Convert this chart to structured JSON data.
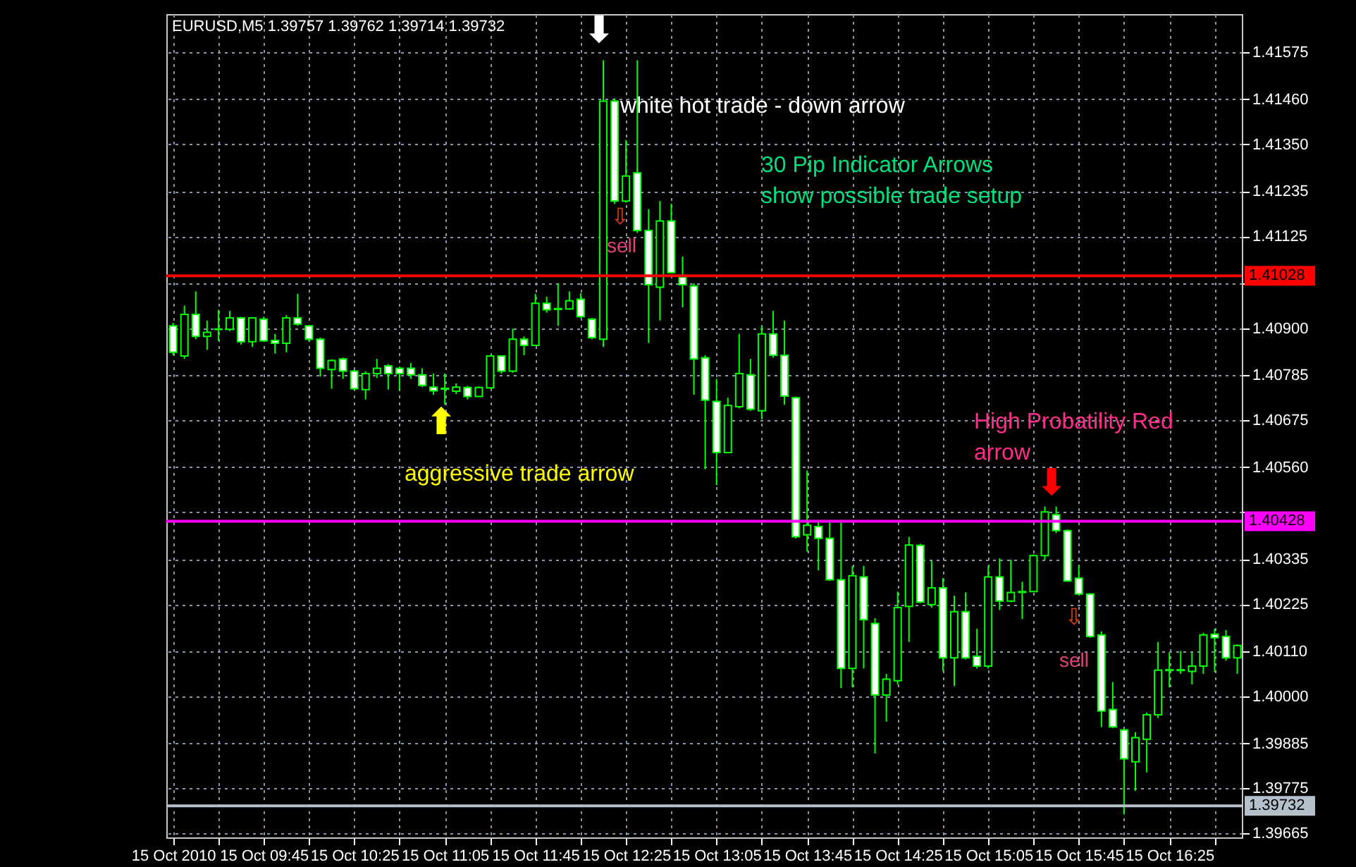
{
  "chart_data": {
    "type": "candlestick",
    "title": "EURUSD,M5  1.39757 1.39762 1.39714 1.39732",
    "x": [
      "2010-10-15T09:05",
      "2010-10-15T09:10",
      "2010-10-15T09:15",
      "2010-10-15T09:20",
      "2010-10-15T09:25",
      "2010-10-15T09:30",
      "2010-10-15T09:35",
      "2010-10-15T09:40",
      "2010-10-15T09:45",
      "2010-10-15T09:50",
      "2010-10-15T09:55",
      "2010-10-15T10:00",
      "2010-10-15T10:05",
      "2010-10-15T10:10",
      "2010-10-15T10:15",
      "2010-10-15T10:20",
      "2010-10-15T10:25",
      "2010-10-15T10:30",
      "2010-10-15T10:35",
      "2010-10-15T10:40",
      "2010-10-15T10:45",
      "2010-10-15T10:50",
      "2010-10-15T10:55",
      "2010-10-15T11:00",
      "2010-10-15T11:05",
      "2010-10-15T11:10",
      "2010-10-15T11:15",
      "2010-10-15T11:20",
      "2010-10-15T11:25",
      "2010-10-15T11:30",
      "2010-10-15T11:35",
      "2010-10-15T11:40",
      "2010-10-15T11:45",
      "2010-10-15T11:50",
      "2010-10-15T11:55",
      "2010-10-15T12:00",
      "2010-10-15T12:05",
      "2010-10-15T12:10",
      "2010-10-15T12:15",
      "2010-10-15T12:20",
      "2010-10-15T12:25",
      "2010-10-15T12:30",
      "2010-10-15T12:35",
      "2010-10-15T12:40",
      "2010-10-15T12:45",
      "2010-10-15T12:50",
      "2010-10-15T12:55",
      "2010-10-15T13:00",
      "2010-10-15T13:05",
      "2010-10-15T13:10",
      "2010-10-15T13:15",
      "2010-10-15T13:20",
      "2010-10-15T13:25",
      "2010-10-15T13:30",
      "2010-10-15T13:35",
      "2010-10-15T13:40",
      "2010-10-15T13:45",
      "2010-10-15T13:50",
      "2010-10-15T13:55",
      "2010-10-15T14:00",
      "2010-10-15T14:05",
      "2010-10-15T14:10",
      "2010-10-15T14:15",
      "2010-10-15T14:20",
      "2010-10-15T14:25",
      "2010-10-15T14:30",
      "2010-10-15T14:35",
      "2010-10-15T14:40",
      "2010-10-15T14:45",
      "2010-10-15T14:50",
      "2010-10-15T14:55",
      "2010-10-15T15:00",
      "2010-10-15T15:05",
      "2010-10-15T15:10",
      "2010-10-15T15:15",
      "2010-10-15T15:20",
      "2010-10-15T15:25",
      "2010-10-15T15:30",
      "2010-10-15T15:35",
      "2010-10-15T15:40",
      "2010-10-15T15:45",
      "2010-10-15T15:50",
      "2010-10-15T15:55",
      "2010-10-15T16:00",
      "2010-10-15T16:05",
      "2010-10-15T16:10",
      "2010-10-15T16:15",
      "2010-10-15T16:20",
      "2010-10-15T16:25",
      "2010-10-15T16:30",
      "2010-10-15T16:35",
      "2010-10-15T16:40",
      "2010-10-15T16:45",
      "2010-10-15T16:50",
      "2010-10-15T16:55"
    ],
    "ohlc": [
      [
        1.40906,
        1.40913,
        1.40834,
        1.40841
      ],
      [
        1.40832,
        1.40955,
        1.40825,
        1.40934
      ],
      [
        1.40934,
        1.4099,
        1.40873,
        1.4088
      ],
      [
        1.4088,
        1.40919,
        1.40847,
        1.4089
      ],
      [
        1.40897,
        1.40945,
        1.40869,
        1.40898
      ],
      [
        1.40897,
        1.40942,
        1.40893,
        1.40925
      ],
      [
        1.40925,
        1.40928,
        1.4086,
        1.40867
      ],
      [
        1.40867,
        1.40927,
        1.40854,
        1.40925
      ],
      [
        1.40922,
        1.40928,
        1.40867,
        1.40869
      ],
      [
        1.4087,
        1.40886,
        1.40838,
        1.40863
      ],
      [
        1.40863,
        1.40932,
        1.40841,
        1.40925
      ],
      [
        1.40925,
        1.40984,
        1.40906,
        1.4091
      ],
      [
        1.40906,
        1.40908,
        1.40867,
        1.40873
      ],
      [
        1.40873,
        1.40877,
        1.40782,
        1.40802
      ],
      [
        1.40799,
        1.40824,
        1.40752,
        1.40821
      ],
      [
        1.40825,
        1.40828,
        1.40776,
        1.40795
      ],
      [
        1.40795,
        1.40798,
        1.40749,
        1.40752
      ],
      [
        1.4075,
        1.40795,
        1.40726,
        1.40789
      ],
      [
        1.40789,
        1.40825,
        1.40778,
        1.40802
      ],
      [
        1.40808,
        1.40812,
        1.4075,
        1.40789
      ],
      [
        1.40802,
        1.40806,
        1.40747,
        1.40789
      ],
      [
        1.40802,
        1.40815,
        1.40776,
        1.40786
      ],
      [
        1.40786,
        1.40802,
        1.40756,
        1.4076
      ],
      [
        1.40756,
        1.40789,
        1.40737,
        1.40747
      ],
      [
        1.40753,
        1.40789,
        1.40713,
        1.40751
      ],
      [
        1.40746,
        1.40765,
        1.40739,
        1.40756
      ],
      [
        1.40755,
        1.40759,
        1.40726,
        1.40733
      ],
      [
        1.40733,
        1.40758,
        1.40733,
        1.40755
      ],
      [
        1.40754,
        1.40834,
        1.40752,
        1.40832
      ],
      [
        1.40832,
        1.40834,
        1.40789,
        1.40795
      ],
      [
        1.40795,
        1.40899,
        1.40791,
        1.40873
      ],
      [
        1.40873,
        1.4088,
        1.40834,
        1.40858
      ],
      [
        1.40858,
        1.40984,
        1.40858,
        1.40961
      ],
      [
        1.40961,
        1.40977,
        1.40938,
        1.40945
      ],
      [
        1.40948,
        1.4101,
        1.40906,
        1.40946
      ],
      [
        1.40947,
        1.4099,
        1.40945,
        1.40967
      ],
      [
        1.40971,
        1.40986,
        1.40925,
        1.40928
      ],
      [
        1.40922,
        1.40925,
        1.40873,
        1.40877
      ],
      [
        1.40873,
        1.41555,
        1.40854,
        1.41455
      ],
      [
        1.41455,
        1.41462,
        1.41204,
        1.41211
      ],
      [
        1.41211,
        1.4136,
        1.41207,
        1.41272
      ],
      [
        1.4128,
        1.41555,
        1.41133,
        1.41139
      ],
      [
        1.41139,
        1.41191,
        1.40864,
        1.41006
      ],
      [
        1.41,
        1.41211,
        1.40919,
        1.41162
      ],
      [
        1.41162,
        1.41204,
        1.41036,
        1.41036
      ],
      [
        1.41025,
        1.41075,
        1.40951,
        1.41006
      ],
      [
        1.41003,
        1.4101,
        1.40737,
        1.40825
      ],
      [
        1.40828,
        1.40834,
        1.40555,
        1.40724
      ],
      [
        1.40721,
        1.40776,
        1.40516,
        1.40596
      ],
      [
        1.40596,
        1.4073,
        1.40594,
        1.40711
      ],
      [
        1.40708,
        1.40886,
        1.40704,
        1.40789
      ],
      [
        1.40786,
        1.40825,
        1.40698,
        1.40702
      ],
      [
        1.40698,
        1.40906,
        1.40678,
        1.40886
      ],
      [
        1.40886,
        1.40942,
        1.40828,
        1.40834
      ],
      [
        1.40834,
        1.40919,
        1.40713,
        1.40734
      ],
      [
        1.4073,
        1.40733,
        1.40386,
        1.4039
      ],
      [
        1.40395,
        1.40552,
        1.40354,
        1.40418
      ],
      [
        1.40415,
        1.40431,
        1.40308,
        1.40386
      ],
      [
        1.40386,
        1.40431,
        1.40282,
        1.40285
      ],
      [
        1.40285,
        1.40431,
        1.4002,
        1.40068
      ],
      [
        1.40068,
        1.40319,
        1.40022,
        1.40295
      ],
      [
        1.40292,
        1.40319,
        1.40068,
        1.40187
      ],
      [
        1.40178,
        1.40191,
        1.3986,
        1.40003
      ],
      [
        1.40003,
        1.40055,
        1.39938,
        1.40042
      ],
      [
        1.40038,
        1.40256,
        1.40029,
        1.40217
      ],
      [
        1.4022,
        1.4039,
        1.40133,
        1.4037
      ],
      [
        1.40369,
        1.40373,
        1.40228,
        1.4023
      ],
      [
        1.40224,
        1.40331,
        1.40217,
        1.40265
      ],
      [
        1.40265,
        1.40289,
        1.40061,
        1.40094
      ],
      [
        1.40094,
        1.40246,
        1.40025,
        1.40207
      ],
      [
        1.40207,
        1.40254,
        1.4009,
        1.40094
      ],
      [
        1.40098,
        1.40165,
        1.40068,
        1.40074
      ],
      [
        1.40074,
        1.40319,
        1.40068,
        1.40292
      ],
      [
        1.40292,
        1.40337,
        1.40211,
        1.40233
      ],
      [
        1.40233,
        1.40334,
        1.4023,
        1.40254
      ],
      [
        1.40254,
        1.4028,
        1.40189,
        1.40256
      ],
      [
        1.40256,
        1.40347,
        1.40256,
        1.40344
      ],
      [
        1.40344,
        1.40464,
        1.40334,
        1.40451
      ],
      [
        1.40444,
        1.40464,
        1.40399,
        1.40405
      ],
      [
        1.40405,
        1.40408,
        1.4028,
        1.40282
      ],
      [
        1.40289,
        1.40319,
        1.4025,
        1.4025
      ],
      [
        1.4025,
        1.40252,
        1.40143,
        1.40146
      ],
      [
        1.4015,
        1.40159,
        1.39925,
        1.39964
      ],
      [
        1.39968,
        1.40035,
        1.39922,
        1.39925
      ],
      [
        1.39918,
        1.39921,
        1.39711,
        1.39847
      ],
      [
        1.3984,
        1.39912,
        1.39769,
        1.39899
      ],
      [
        1.39895,
        1.3996,
        1.39814,
        1.39955
      ],
      [
        1.39955,
        1.40133,
        1.39947,
        1.40064
      ],
      [
        1.40063,
        1.40107,
        1.40022,
        1.40065
      ],
      [
        1.40065,
        1.40111,
        1.40055,
        1.40063
      ],
      [
        1.40061,
        1.40107,
        1.40029,
        1.40074
      ],
      [
        1.40074,
        1.40155,
        1.40055,
        1.4015
      ],
      [
        1.40152,
        1.40165,
        1.40059,
        1.40143
      ],
      [
        1.40146,
        1.40162,
        1.40087,
        1.40094
      ],
      [
        1.40094,
        1.40127,
        1.40055,
        1.40124
      ]
    ],
    "xlim": [
      "2010-10-15T09:02",
      "2010-10-15T16:57"
    ],
    "xticks": [
      {
        "value": "2010-10-15T09:05",
        "label": "15 Oct 2010"
      },
      {
        "value": "2010-10-15T09:25",
        "label": null
      },
      {
        "value": "2010-10-15T09:45",
        "label": "15 Oct 09:45"
      },
      {
        "value": "2010-10-15T10:05",
        "label": null
      },
      {
        "value": "2010-10-15T10:25",
        "label": "15 Oct 10:25"
      },
      {
        "value": "2010-10-15T10:45",
        "label": null
      },
      {
        "value": "2010-10-15T11:05",
        "label": "15 Oct 11:05"
      },
      {
        "value": "2010-10-15T11:25",
        "label": null
      },
      {
        "value": "2010-10-15T11:45",
        "label": "15 Oct 11:45"
      },
      {
        "value": "2010-10-15T12:05",
        "label": null
      },
      {
        "value": "2010-10-15T12:25",
        "label": "15 Oct 12:25"
      },
      {
        "value": "2010-10-15T12:45",
        "label": null
      },
      {
        "value": "2010-10-15T13:05",
        "label": "15 Oct 13:05"
      },
      {
        "value": "2010-10-15T13:25",
        "label": null
      },
      {
        "value": "2010-10-15T13:45",
        "label": "15 Oct 13:45"
      },
      {
        "value": "2010-10-15T14:05",
        "label": null
      },
      {
        "value": "2010-10-15T14:25",
        "label": "15 Oct 14:25"
      },
      {
        "value": "2010-10-15T14:45",
        "label": null
      },
      {
        "value": "2010-10-15T15:05",
        "label": "15 Oct 15:05"
      },
      {
        "value": "2010-10-15T15:25",
        "label": null
      },
      {
        "value": "2010-10-15T15:45",
        "label": "15 Oct 15:45"
      },
      {
        "value": "2010-10-15T16:05",
        "label": null
      },
      {
        "value": "2010-10-15T16:25",
        "label": "15 Oct 16:25"
      },
      {
        "value": "2010-10-15T16:45",
        "label": null
      }
    ],
    "ylim": [
      1.39655,
      1.41668
    ],
    "yticks": [
      1.39665,
      1.39775,
      1.39885,
      {
        "value": 1.4,
        "label": "1.40000"
      },
      {
        "value": 1.4011,
        "label": "1.40110"
      },
      1.40225,
      1.40335,
      {
        "value": 1.4045,
        "label": null
      },
      {
        "value": 1.4056,
        "label": "1.40560"
      },
      1.40675,
      1.40785,
      {
        "value": 1.409,
        "label": "1.40900"
      },
      {
        "value": 1.4101,
        "label": null
      },
      1.41125,
      1.41235,
      {
        "value": 1.4135,
        "label": "1.41350"
      },
      {
        "value": 1.4146,
        "label": "1.41460"
      },
      1.41575
    ],
    "grid": true,
    "ref_lines": [
      {
        "axis": "y",
        "value": 1.41028,
        "label": "1.41028",
        "color": "#ff0000"
      },
      {
        "axis": "y",
        "value": 1.40428,
        "label": "1.40428",
        "color": "#ff00ff"
      },
      {
        "axis": "y",
        "value": 1.39732,
        "label": "1.39732",
        "color": "#b4c0cc"
      }
    ],
    "annotations": [
      "⬇",
      "white hot trade - down arrow",
      "30 Pip Indicator Arrows\nshow possible trade setup",
      "⬆",
      "aggressive trade arrow",
      "High Probatility Red\narrow",
      "⬇",
      "⇩",
      "sell",
      "⇩",
      "sell"
    ]
  }
}
